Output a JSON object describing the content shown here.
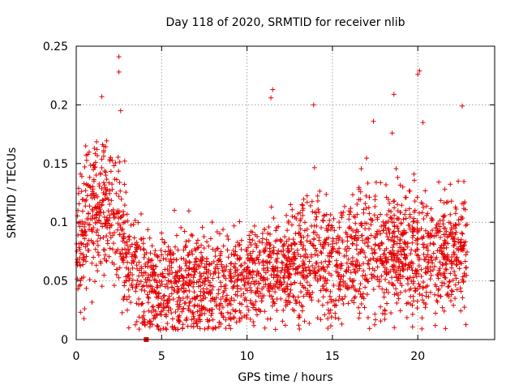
{
  "chart_data": {
    "type": "scatter",
    "title": "Day 118 of 2020, SRMTID for receiver nlib",
    "xlabel": "GPS time / hours",
    "ylabel": "SRMTID / TECUs",
    "xlim": [
      0,
      24.5
    ],
    "ylim": [
      0,
      0.25
    ],
    "xticks": [
      0,
      5,
      10,
      15,
      20
    ],
    "xtick_labels": [
      "0",
      "5",
      "10",
      "15",
      "20"
    ],
    "yticks": [
      0,
      0.05,
      0.1,
      0.15,
      0.2,
      0.25
    ],
    "ytick_labels": [
      "0",
      "0.05",
      "0.1",
      "0.15",
      "0.2",
      "0.25"
    ],
    "grid": true,
    "marker": "+",
    "color": "#e60000",
    "series": [
      {
        "name": "SRMTID",
        "envelope": {
          "x": [
            0,
            0.5,
            1.0,
            1.5,
            2.0,
            2.5,
            3.0,
            3.5,
            4.0,
            4.5,
            5,
            6,
            7,
            8,
            9,
            10,
            11,
            12,
            13,
            14,
            15,
            16,
            17,
            18,
            19,
            20,
            21,
            22,
            22.9
          ],
          "y_mean": [
            0.085,
            0.095,
            0.105,
            0.115,
            0.11,
            0.1,
            0.07,
            0.055,
            0.048,
            0.045,
            0.045,
            0.045,
            0.045,
            0.045,
            0.05,
            0.055,
            0.06,
            0.06,
            0.065,
            0.07,
            0.068,
            0.07,
            0.075,
            0.075,
            0.075,
            0.075,
            0.07,
            0.075,
            0.075
          ]
        },
        "notable_points": [
          {
            "x": 2.5,
            "y": 0.241
          },
          {
            "x": 2.5,
            "y": 0.228
          },
          {
            "x": 1.5,
            "y": 0.207
          },
          {
            "x": 2.6,
            "y": 0.195
          },
          {
            "x": 11.5,
            "y": 0.213
          },
          {
            "x": 11.4,
            "y": 0.206
          },
          {
            "x": 13.9,
            "y": 0.2
          },
          {
            "x": 18.6,
            "y": 0.209
          },
          {
            "x": 20.1,
            "y": 0.229
          },
          {
            "x": 20.0,
            "y": 0.226
          },
          {
            "x": 22.6,
            "y": 0.199
          },
          {
            "x": 17.4,
            "y": 0.186
          },
          {
            "x": 20.3,
            "y": 0.185
          },
          {
            "x": 18.5,
            "y": 0.176
          },
          {
            "x": 4.1,
            "y": 0.0
          }
        ]
      }
    ]
  }
}
